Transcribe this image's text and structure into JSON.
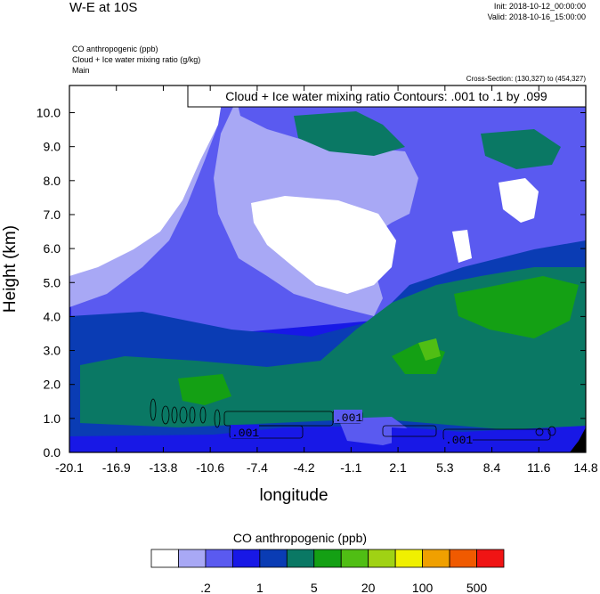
{
  "header": {
    "title": "W-E at 10S",
    "init": "Init: 2018-10-12_00:00:00",
    "valid": "Valid: 2018-10-16_15:00:00",
    "subtitle_lines": [
      "CO anthropogenic   (ppb)",
      "Cloud + Ice water mixing ratio   (g/kg)",
      "Main"
    ],
    "cross_section": "Cross-Section: (130,327) to (454,327)"
  },
  "contour_label": "Cloud + Ice water mixing ratio Contours: .001 to .1 by .099",
  "colors": {
    "levels": [
      "#ffffff",
      "#a8a8f5",
      "#5a5af0",
      "#1818e6",
      "#0a3cb4",
      "#0a7864",
      "#14a014",
      "#50be14",
      "#a0d214",
      "#f0f000",
      "#f0a000",
      "#f05a00",
      "#f01414"
    ],
    "contour_line": "#000000",
    "terrain": "#000000"
  },
  "chart_data": {
    "type": "heatmap",
    "xlabel": "longitude",
    "ylabel": "Height (km)",
    "xticks": [
      "-20.1",
      "-16.9",
      "-13.8",
      "-10.6",
      "-7.4",
      "-4.2",
      "-1.1",
      "2.1",
      "5.3",
      "8.4",
      "11.6",
      "14.8"
    ],
    "yticks": [
      "0.0",
      "1.0",
      "2.0",
      "3.0",
      "4.0",
      "5.0",
      "6.0",
      "7.0",
      "8.0",
      "9.0",
      "10.0"
    ],
    "xlim": [
      -20.1,
      14.8
    ],
    "ylim": [
      0,
      10.8
    ],
    "contour_labels": [
      ".001",
      ".001",
      ".001"
    ],
    "colorbar": {
      "title": "CO anthropogenic  (ppb)",
      "labels": [
        ".2",
        "1",
        "5",
        "20",
        "100",
        "500"
      ]
    }
  }
}
